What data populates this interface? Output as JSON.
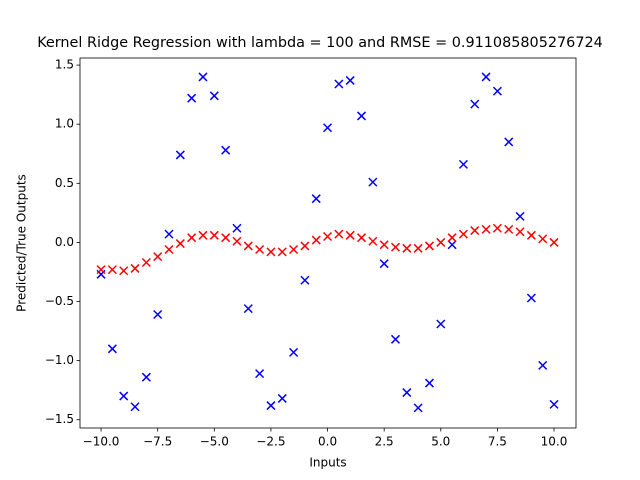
{
  "chart_data": {
    "type": "scatter",
    "title": "Kernel Ridge Regression with lambda = 100 and RMSE = 0.911085805276724",
    "x_label": "Inputs",
    "y_label": "Predicted/True Outputs",
    "x": [
      -10,
      -9.5,
      -9,
      -8.5,
      -8,
      -7.5,
      -7,
      -6.5,
      -6,
      -5.5,
      -5,
      -4.5,
      -4,
      -3.5,
      -3,
      -2.5,
      -2,
      -1.5,
      -1,
      -0.5,
      0,
      0.5,
      1,
      1.5,
      2,
      2.5,
      3,
      3.5,
      4,
      4.5,
      5,
      5.5,
      6,
      6.5,
      7,
      7.5,
      8,
      8.5,
      9,
      9.5,
      10
    ],
    "series": [
      {
        "color": "#0000ff",
        "values": [
          -0.27,
          -0.9,
          -1.3,
          -1.39,
          -1.14,
          -0.61,
          0.07,
          0.74,
          1.22,
          1.4,
          1.24,
          0.78,
          0.12,
          -0.56,
          -1.11,
          -1.38,
          -1.32,
          -0.93,
          -0.32,
          0.37,
          0.97,
          1.34,
          1.37,
          1.07,
          0.51,
          -0.18,
          -0.82,
          -1.27,
          -1.4,
          -1.19,
          -0.69,
          -0.02,
          0.66,
          1.17,
          1.4,
          1.28,
          0.85,
          0.22,
          -0.47,
          -1.04,
          -1.37
        ]
      },
      {
        "color": "#ff0000",
        "values": [
          -0.23,
          -0.23,
          -0.24,
          -0.22,
          -0.17,
          -0.12,
          -0.06,
          -0.01,
          0.04,
          0.06,
          0.06,
          0.04,
          0.01,
          -0.03,
          -0.06,
          -0.08,
          -0.08,
          -0.06,
          -0.03,
          0.02,
          0.05,
          0.07,
          0.06,
          0.04,
          0.01,
          -0.02,
          -0.04,
          -0.05,
          -0.05,
          -0.03,
          0,
          0.04,
          0.07,
          0.1,
          0.11,
          0.12,
          0.11,
          0.09,
          0.06,
          0.03,
          0
        ]
      }
    ],
    "xlim": [
      -10.93,
      10.97
    ],
    "ylim": [
      -1.57,
      1.56
    ],
    "xticks": [
      {
        "value": -10,
        "label": "−10.0"
      },
      {
        "value": -7.5,
        "label": "−7.5"
      },
      {
        "value": -5,
        "label": "−5.0"
      },
      {
        "value": -2.5,
        "label": "−2.5"
      },
      {
        "value": 0,
        "label": "0.0"
      },
      {
        "value": 2.5,
        "label": "2.5"
      },
      {
        "value": 5,
        "label": "5.0"
      },
      {
        "value": 7.5,
        "label": "7.5"
      },
      {
        "value": 10,
        "label": "10.0"
      }
    ],
    "yticks": [
      {
        "value": -1.5,
        "label": "−1.5"
      },
      {
        "value": -1,
        "label": "−1.0"
      },
      {
        "value": -0.5,
        "label": "−0.5"
      },
      {
        "value": 0,
        "label": "0.0"
      },
      0.5,
      {
        "value": 1,
        "label": "1.0"
      },
      1.5
    ]
  }
}
